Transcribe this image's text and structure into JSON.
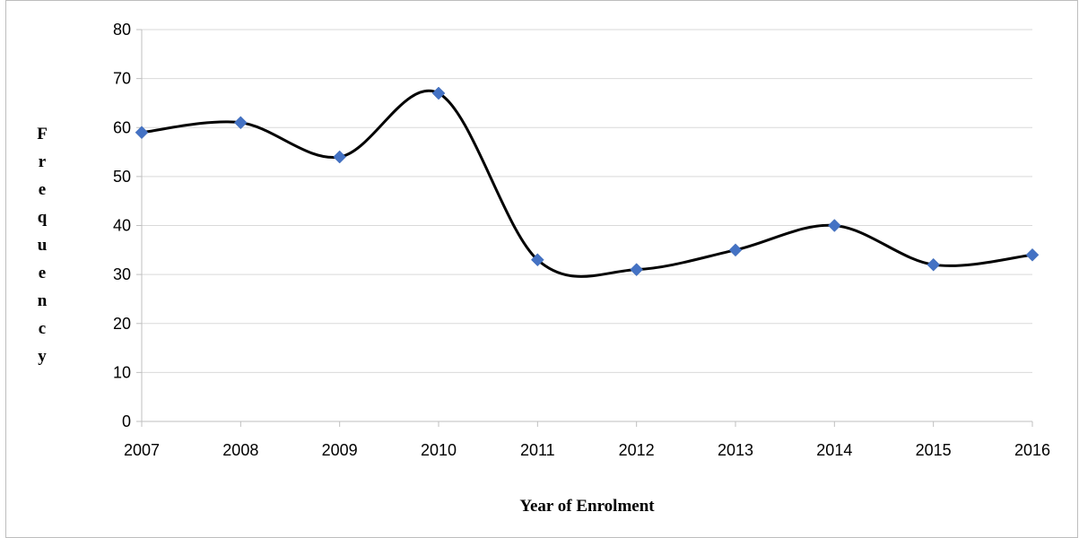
{
  "chart_data": {
    "type": "line",
    "title": "",
    "xlabel": "Year of Enrolment",
    "ylabel": "Frequency",
    "categories": [
      "2007",
      "2008",
      "2009",
      "2010",
      "2011",
      "2012",
      "2013",
      "2014",
      "2015",
      "2016"
    ],
    "series": [
      {
        "values": [
          59,
          61,
          54,
          67,
          33,
          31,
          35,
          40,
          32,
          34
        ],
        "line_color": "#000000",
        "marker_color": "#4472c4",
        "marker": "diamond",
        "smoothed": true
      }
    ],
    "ylim": [
      0,
      80
    ],
    "yticks": [
      "0",
      "10",
      "20",
      "30",
      "40",
      "50",
      "60",
      "70",
      "80"
    ],
    "grid": true,
    "legend": "none"
  }
}
